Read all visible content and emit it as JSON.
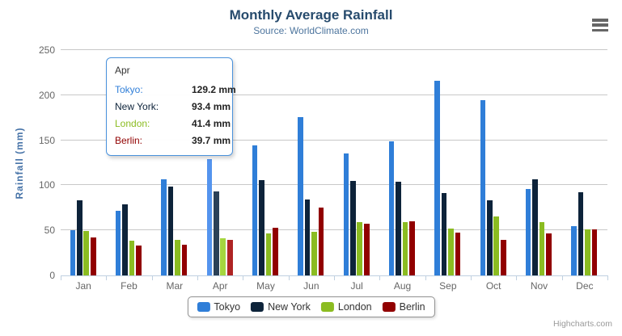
{
  "header": {
    "title": "Monthly Average Rainfall",
    "subtitle": "Source: WorldClimate.com"
  },
  "chart_data": {
    "type": "bar",
    "title": "Monthly Average Rainfall",
    "subtitle": "Source: WorldClimate.com",
    "xlabel": "",
    "ylabel": "Rainfall (mm)",
    "ylim": [
      0,
      250
    ],
    "yticks": [
      0,
      50,
      100,
      150,
      200,
      250
    ],
    "grid": true,
    "legend_position": "bottom-center",
    "categories": [
      "Jan",
      "Feb",
      "Mar",
      "Apr",
      "May",
      "Jun",
      "Jul",
      "Aug",
      "Sep",
      "Oct",
      "Nov",
      "Dec"
    ],
    "series": [
      {
        "name": "Tokyo",
        "color": "#2f7ed8",
        "hover_color": "#5494ee",
        "values": [
          49.9,
          71.5,
          106.4,
          129.2,
          144.0,
          176.0,
          135.6,
          148.5,
          216.4,
          194.1,
          95.6,
          54.4
        ]
      },
      {
        "name": "New York",
        "color": "#0d233a",
        "hover_color": "#2b4158",
        "values": [
          83.6,
          78.8,
          98.5,
          93.4,
          106.0,
          84.5,
          105.0,
          104.3,
          91.2,
          83.5,
          106.6,
          92.3
        ]
      },
      {
        "name": "London",
        "color": "#8bbc21",
        "hover_color": "#a5d63f",
        "values": [
          48.9,
          38.8,
          39.3,
          41.4,
          47.0,
          48.3,
          59.0,
          59.6,
          52.4,
          65.2,
          59.3,
          51.2
        ]
      },
      {
        "name": "Berlin",
        "color": "#910000",
        "hover_color": "#af2424",
        "values": [
          42.4,
          33.2,
          34.5,
          39.7,
          52.6,
          75.5,
          57.4,
          60.4,
          47.6,
          39.1,
          46.8,
          51.1
        ]
      }
    ],
    "hover_category": "Apr"
  },
  "tooltip": {
    "category": "Apr",
    "rows": [
      {
        "label": "Tokyo:",
        "value": "129.2 mm",
        "color": "#2f7ed8"
      },
      {
        "label": "New York:",
        "value": "93.4 mm",
        "color": "#0d233a"
      },
      {
        "label": "London:",
        "value": "41.4 mm",
        "color": "#8bbc21"
      },
      {
        "label": "Berlin:",
        "value": "39.7 mm",
        "color": "#910000"
      }
    ]
  },
  "legend": {
    "items": [
      {
        "label": "Tokyo",
        "color": "#2f7ed8"
      },
      {
        "label": "New York",
        "color": "#0d233a"
      },
      {
        "label": "London",
        "color": "#8bbc21"
      },
      {
        "label": "Berlin",
        "color": "#910000"
      }
    ]
  },
  "credits": {
    "label": "Highcharts.com"
  },
  "colors": {
    "title": "#274b6d",
    "subtitle": "#4d759e",
    "axis_title": "#4572a7",
    "axis_labels": "#666666",
    "gridline": "#c8c8c8",
    "axis_line": "#c0d0e0",
    "tooltip_border": "#4a92dc",
    "legend_border": "#909090"
  }
}
